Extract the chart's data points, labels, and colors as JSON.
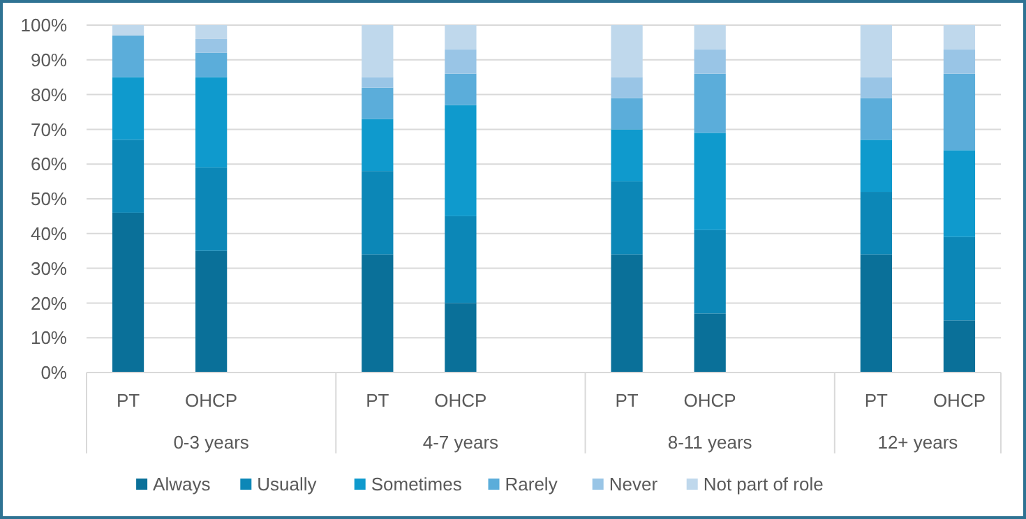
{
  "chart_data": {
    "type": "bar",
    "stacked": true,
    "categories": [
      "PT",
      "OHCP",
      null,
      "PT",
      "OHCP",
      null,
      "PT",
      "OHCP",
      null,
      "PT",
      "OHCP"
    ],
    "annotations": [
      "0-3 years",
      "4-7 years",
      "8-11 years",
      "12+ years"
    ],
    "series": [
      {
        "name": "Always",
        "color": "#0a7099",
        "values": [
          46,
          35,
          null,
          34,
          20,
          null,
          34,
          17,
          null,
          34,
          15
        ]
      },
      {
        "name": "Usually",
        "color": "#0c87b7",
        "values": [
          21,
          24,
          null,
          24,
          25,
          null,
          21,
          24,
          null,
          18,
          24
        ]
      },
      {
        "name": "Sometimes",
        "color": "#0f9acd",
        "values": [
          18,
          26,
          null,
          15,
          32,
          null,
          15,
          28,
          null,
          15,
          25
        ]
      },
      {
        "name": "Rarely",
        "color": "#5badda",
        "values": [
          12,
          7,
          null,
          9,
          9,
          null,
          9,
          17,
          null,
          12,
          22
        ]
      },
      {
        "name": "Never",
        "color": "#99c5e6",
        "values": [
          0,
          4,
          null,
          3,
          7,
          null,
          6,
          7,
          null,
          6,
          7
        ]
      },
      {
        "name": "Not part of role",
        "color": "#bfd8ec",
        "values": [
          3,
          4,
          null,
          15,
          7,
          null,
          15,
          7,
          null,
          15,
          7
        ]
      }
    ],
    "ylim": [
      0,
      100
    ],
    "yticks": [
      {
        "value": 0,
        "label": "0%"
      },
      {
        "value": 10,
        "label": "10%"
      },
      {
        "value": 20,
        "label": "20%"
      },
      {
        "value": 30,
        "label": "30%"
      },
      {
        "value": 40,
        "label": "40%"
      },
      {
        "value": 50,
        "label": "50%"
      },
      {
        "value": 60,
        "label": "60%"
      },
      {
        "value": 70,
        "label": "70%"
      },
      {
        "value": 80,
        "label": "80%"
      },
      {
        "value": 90,
        "label": "90%"
      },
      {
        "value": 100,
        "label": "100%"
      }
    ],
    "grid": "y",
    "legend": "bottom"
  }
}
